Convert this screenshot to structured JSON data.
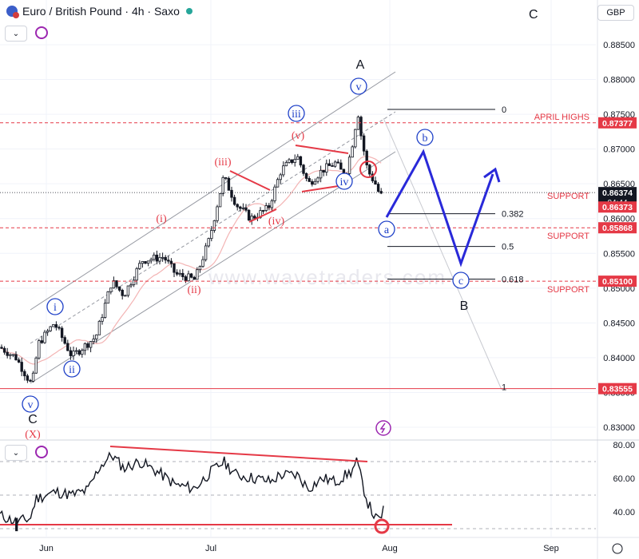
{
  "header": {
    "symbol_title": "Euro / British Pound · 4h · Saxo",
    "currency": "GBP",
    "corner_label": "C",
    "collapse_icon": "chevron-down-icon",
    "refresh_icon": "refresh-icon",
    "settings_icon": "gear-icon"
  },
  "chart_data": {
    "type": "candlestick",
    "instrument": "Euro / British Pound",
    "timeframe": "4h",
    "source": "Saxo",
    "watermark": "www.wavetraders.com",
    "price_axis": {
      "ticks": [
        "0.88500",
        "0.88000",
        "0.87500",
        "0.87000",
        "0.86500",
        "0.86000",
        "0.85500",
        "0.85000",
        "0.84500",
        "0.84000",
        "0.83500",
        "0.83000"
      ],
      "range": [
        0.8275,
        0.8895
      ]
    },
    "time_axis": {
      "ticks": [
        "Jun",
        "Jul",
        "Aug",
        "Sep"
      ]
    },
    "price_tags": [
      {
        "value": "0.87377",
        "color": "#e53946"
      },
      {
        "value": "0.86374",
        "sub": "04:44",
        "color": "#131722"
      },
      {
        "value": "0.86373",
        "color": "#e53946"
      },
      {
        "value": "0.85868",
        "color": "#e53946"
      },
      {
        "value": "0.85100",
        "color": "#e53946"
      },
      {
        "value": "0.83555",
        "color": "#e53946"
      }
    ],
    "levels": [
      {
        "label": "APRIL HIGHS",
        "value": 0.87377
      },
      {
        "label": "SUPPORT",
        "value": 0.86373
      },
      {
        "label": "SUPPORT",
        "value": 0.85868
      },
      {
        "label": "SUPPORT",
        "value": 0.851
      },
      {
        "label": "",
        "value": 0.83555
      }
    ],
    "fibonacci": [
      {
        "ratio": "0",
        "value": 0.8757
      },
      {
        "ratio": "0.382",
        "value": 0.8607
      },
      {
        "ratio": "0.5",
        "value": 0.856
      },
      {
        "ratio": "0.618",
        "value": 0.8513
      },
      {
        "ratio": "1",
        "value": 0.8358
      }
    ],
    "wave_labels": {
      "A": "A",
      "B": "B",
      "C": "C",
      "X": "(X)",
      "minor": [
        "i",
        "ii",
        "iii",
        "iv",
        "v"
      ],
      "minute": [
        "(i)",
        "(ii)",
        "(iii)",
        "(iv)",
        "(v)"
      ],
      "projection": [
        "a",
        "b",
        "c"
      ]
    },
    "oscillator": {
      "ticks": [
        "80.00",
        "60.00",
        "40.00"
      ],
      "range": [
        25,
        85
      ],
      "levels": [
        70,
        50,
        30
      ]
    },
    "colors": {
      "candle": "#131722",
      "red": "#e53946",
      "blue": "#2929d9",
      "label_blue": "#1e40c8",
      "channel": "#9598a1",
      "ma": "#f3b4b4"
    }
  }
}
